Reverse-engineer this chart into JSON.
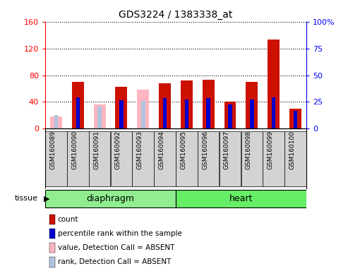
{
  "title": "GDS3224 / 1383338_at",
  "samples": [
    "GSM160089",
    "GSM160090",
    "GSM160091",
    "GSM160092",
    "GSM160093",
    "GSM160094",
    "GSM160095",
    "GSM160096",
    "GSM160097",
    "GSM160098",
    "GSM160099",
    "GSM160100"
  ],
  "count_values": [
    0,
    70,
    0,
    63,
    0,
    68,
    72,
    73,
    40,
    70,
    133,
    30
  ],
  "rank_values": [
    0,
    47,
    0,
    43,
    0,
    46,
    44,
    46,
    36,
    44,
    47,
    27
  ],
  "absent_value": [
    18,
    0,
    36,
    0,
    58,
    0,
    0,
    0,
    0,
    0,
    0,
    0
  ],
  "absent_rank": [
    20,
    0,
    33,
    0,
    42,
    0,
    0,
    0,
    0,
    0,
    0,
    0
  ],
  "is_absent": [
    true,
    false,
    true,
    false,
    true,
    false,
    false,
    false,
    false,
    false,
    false,
    false
  ],
  "tissues": [
    "diaphragm",
    "heart"
  ],
  "tissue_splits": [
    6,
    6
  ],
  "left_ylim": [
    0,
    160
  ],
  "right_ylim": [
    0,
    100
  ],
  "left_yticks": [
    0,
    40,
    80,
    120,
    160
  ],
  "right_yticks": [
    0,
    25,
    50,
    75,
    100
  ],
  "color_count": "#CC1100",
  "color_rank": "#0000CC",
  "color_absent_value": "#FFB6C1",
  "color_absent_rank": "#B0C4DE",
  "legend_items": [
    "count",
    "percentile rank within the sample",
    "value, Detection Call = ABSENT",
    "rank, Detection Call = ABSENT"
  ]
}
